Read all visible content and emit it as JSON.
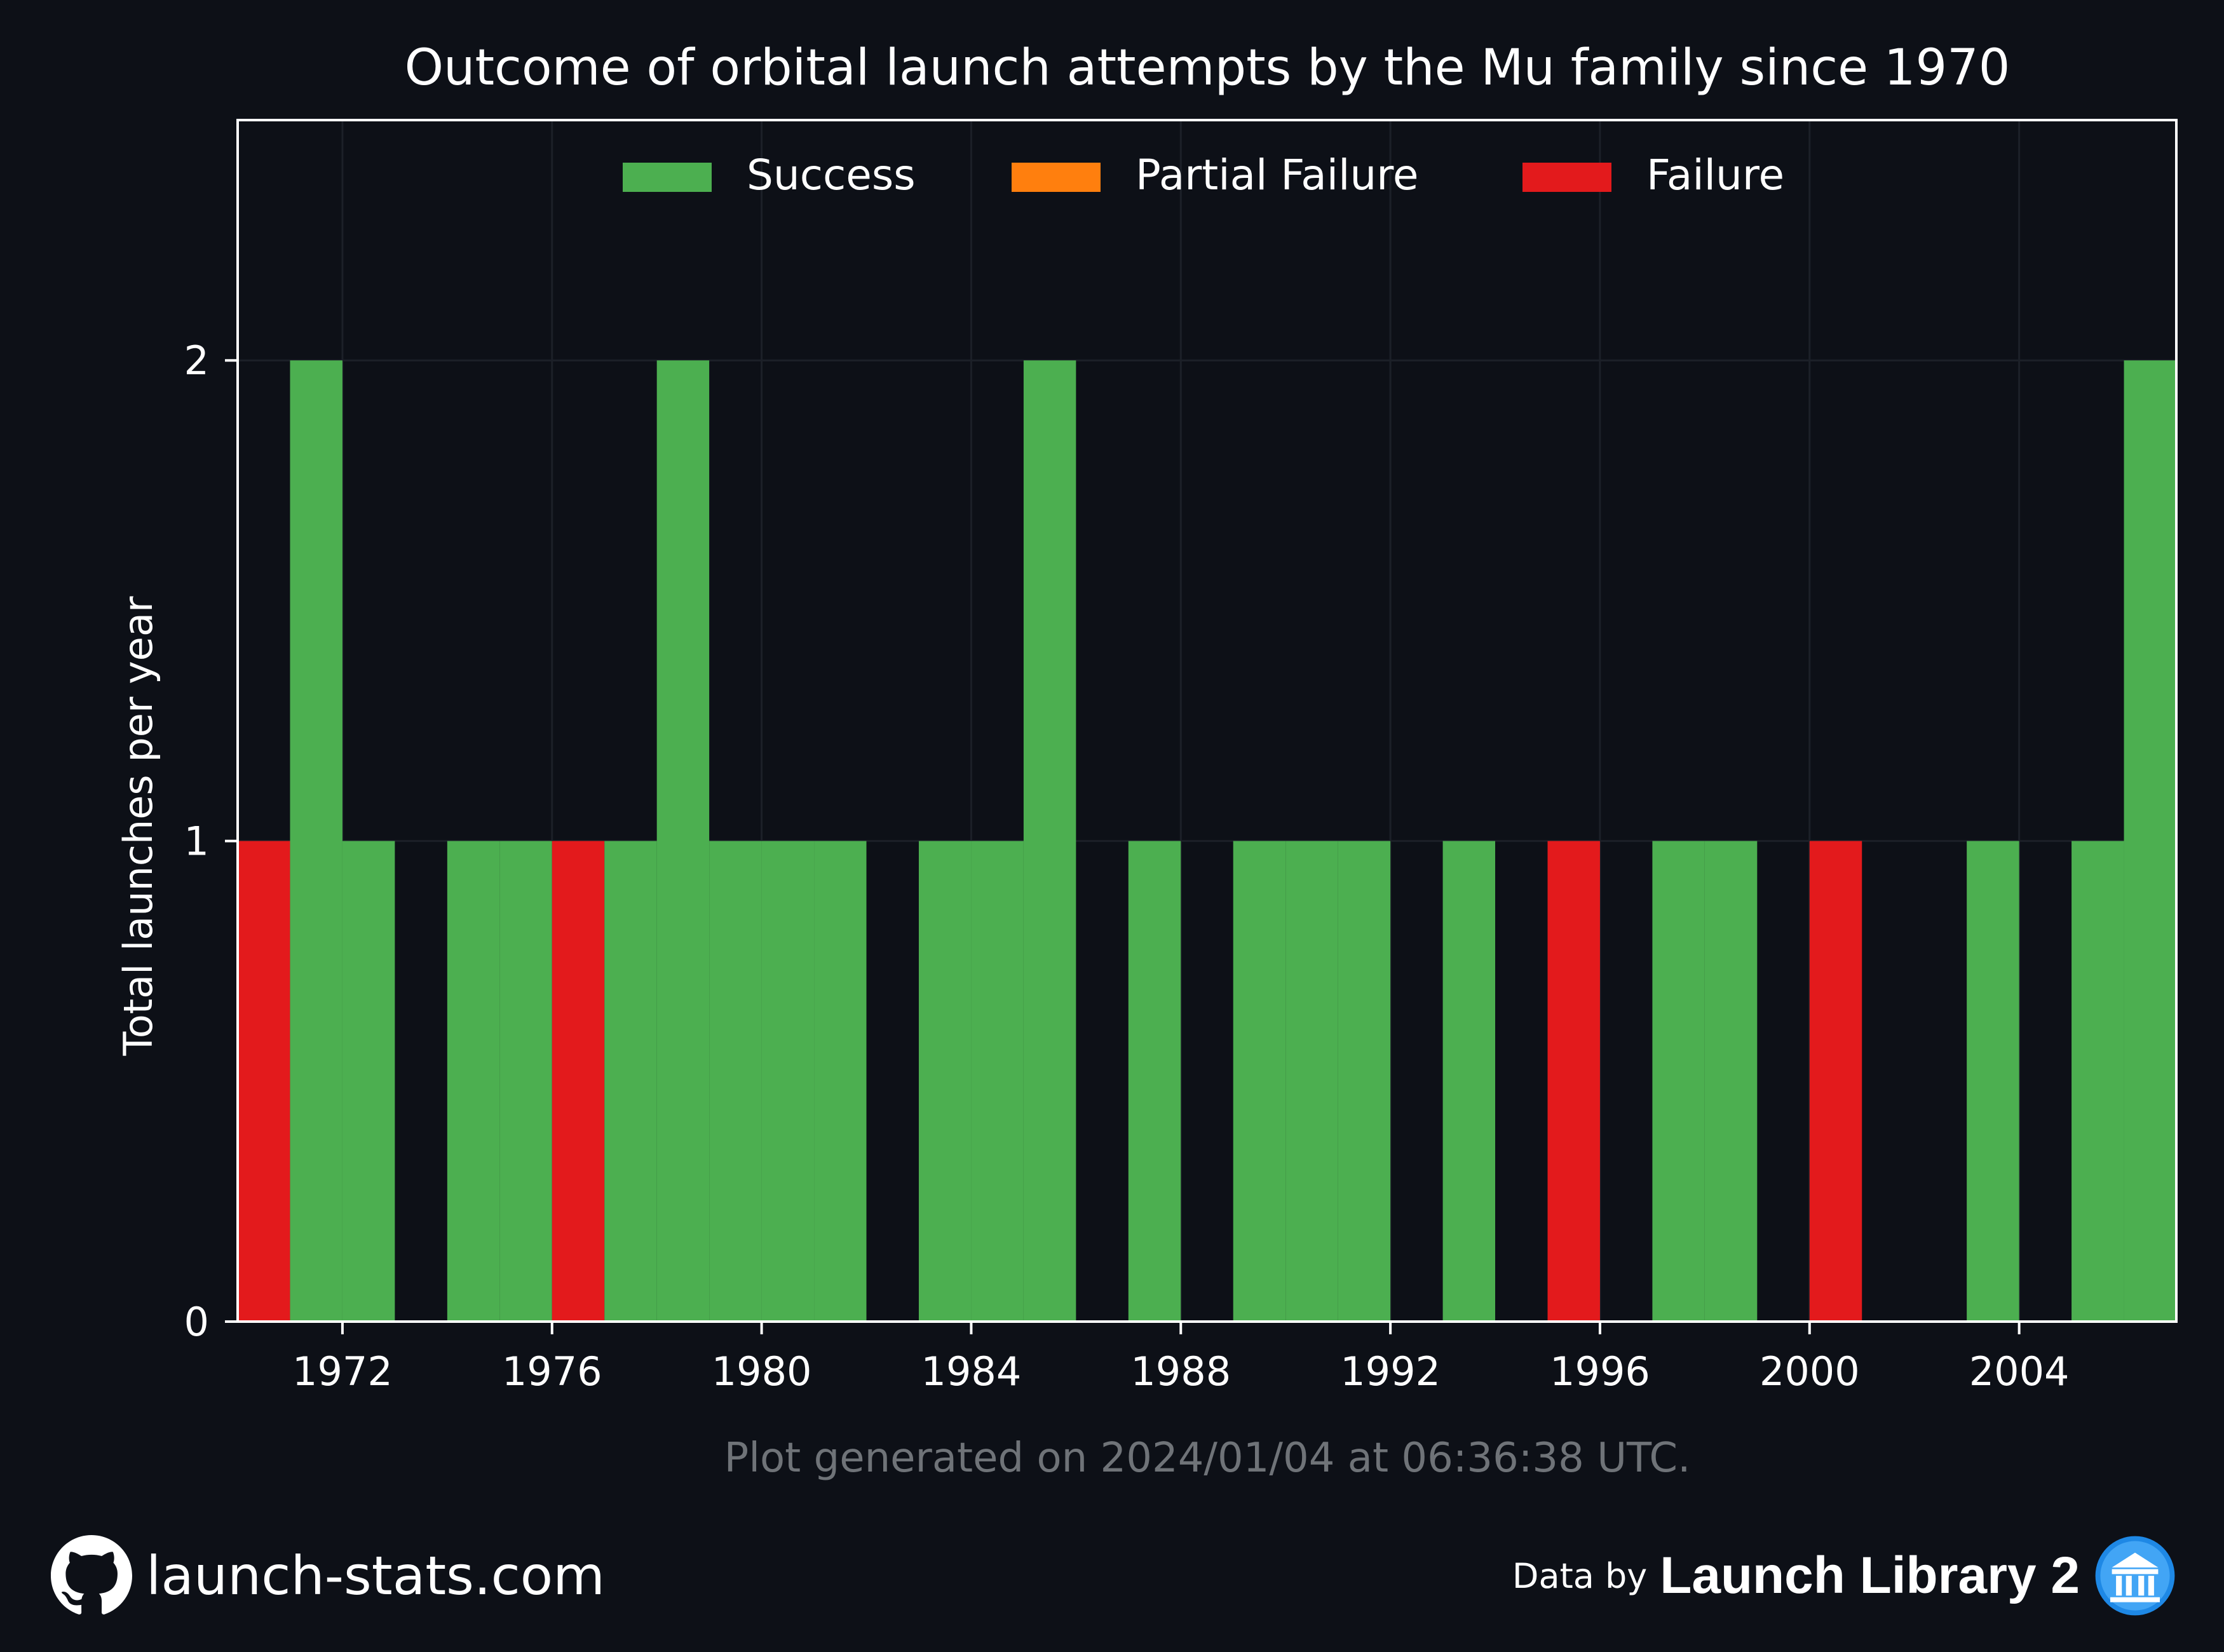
{
  "chart_data": {
    "type": "bar",
    "stacked": true,
    "title": "Outcome of orbital launch attempts by the Mu family since 1970",
    "xlabel": "",
    "ylabel": "Total launches per year",
    "xlim": [
      1970,
      2007
    ],
    "ylim": [
      0,
      2.5
    ],
    "x_ticks": [
      1972,
      1976,
      1980,
      1984,
      1988,
      1992,
      1996,
      2000,
      2004
    ],
    "y_ticks": [
      0,
      1,
      2
    ],
    "grid": true,
    "legend_position": "top-center",
    "years": [
      1970,
      1971,
      1972,
      1973,
      1974,
      1975,
      1976,
      1977,
      1978,
      1979,
      1980,
      1981,
      1982,
      1983,
      1984,
      1985,
      1986,
      1987,
      1988,
      1989,
      1990,
      1991,
      1992,
      1993,
      1994,
      1995,
      1996,
      1997,
      1998,
      1999,
      2000,
      2001,
      2002,
      2003,
      2004,
      2005,
      2006
    ],
    "series": [
      {
        "name": "Success",
        "color": "#4caf50",
        "values": [
          0,
          2,
          1,
          0,
          1,
          1,
          0,
          1,
          2,
          1,
          1,
          1,
          0,
          1,
          1,
          2,
          0,
          1,
          0,
          1,
          1,
          1,
          0,
          1,
          0,
          0,
          0,
          1,
          1,
          0,
          0,
          0,
          0,
          1,
          0,
          1,
          2
        ]
      },
      {
        "name": "Partial Failure",
        "color": "#ff7f0e",
        "values": [
          0,
          0,
          0,
          0,
          0,
          0,
          0,
          0,
          0,
          0,
          0,
          0,
          0,
          0,
          0,
          0,
          0,
          0,
          0,
          0,
          0,
          0,
          0,
          0,
          0,
          0,
          0,
          0,
          0,
          0,
          0,
          0,
          0,
          0,
          0,
          0,
          0
        ]
      },
      {
        "name": "Failure",
        "color": "#e31a1c",
        "values": [
          1,
          0,
          0,
          0,
          0,
          0,
          1,
          0,
          0,
          0,
          0,
          0,
          0,
          0,
          0,
          0,
          0,
          0,
          0,
          0,
          0,
          0,
          0,
          0,
          0,
          1,
          0,
          0,
          0,
          0,
          1,
          0,
          0,
          0,
          0,
          0,
          0
        ]
      }
    ],
    "total_outline_color": "#0d1017"
  },
  "footer": {
    "generated": "Plot generated on 2024/01/04 at 06:36:38 UTC.",
    "site": "launch-stats.com",
    "data_by": "Data by",
    "source": "Launch Library 2"
  },
  "icons": {
    "github": "github-icon",
    "launch_library": "launch-library-icon"
  }
}
